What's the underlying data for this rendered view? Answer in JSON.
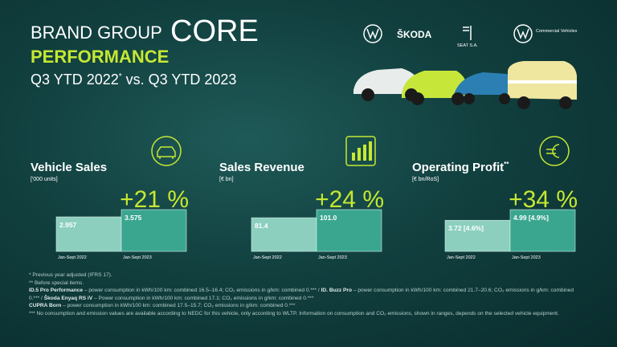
{
  "header": {
    "title_a": "BRAND GROUP",
    "title_b": "CORE",
    "subtitle": "PERFORMANCE",
    "period_a": "Q3 YTD 2022",
    "period_mark": "*",
    "period_b": " vs. Q3 YTD 2023"
  },
  "brands": [
    "ŠKODA",
    "SEAT S.A.",
    "Commercial Vehicles"
  ],
  "chart_data": [
    {
      "type": "bar",
      "title": "Vehicle Sales",
      "unit": "['000 units]",
      "change": "+21 %",
      "categories": [
        "Jan-Sept 2022",
        "Jan-Sept 2023"
      ],
      "values": [
        2.957,
        3.575
      ],
      "value_labels": [
        "2.957",
        "3.575"
      ],
      "colors": [
        "#8ccfbf",
        "#3aa68f"
      ]
    },
    {
      "type": "bar",
      "title": "Sales Revenue",
      "unit": "[€ bn]",
      "change": "+24 %",
      "categories": [
        "Jan-Sept 2022",
        "Jan-Sept 2023"
      ],
      "values": [
        81.4,
        101.0
      ],
      "value_labels": [
        "81.4",
        "101.0"
      ],
      "colors": [
        "#8ccfbf",
        "#3aa68f"
      ]
    },
    {
      "type": "bar",
      "title": "Operating Profit",
      "title_mark": "**",
      "unit": "[€ bn/RoS]",
      "change": "+34 %",
      "categories": [
        "Jan-Sept 2022",
        "Jan-Sept 2023"
      ],
      "values": [
        3.72,
        4.99
      ],
      "value_labels": [
        "3.72 [4.6%]",
        "4.99 [4.9%]"
      ],
      "colors": [
        "#8ccfbf",
        "#3aa68f"
      ]
    }
  ],
  "footnotes": [
    [
      {
        "text": "* Previous year adjusted (IFRS 17)."
      }
    ],
    [
      {
        "text": "** Before special items."
      }
    ],
    [
      {
        "bold": "ID.5 Pro Performance"
      },
      {
        "text": " – power consumption in kWh/100 km: combined 16.5–16.4; CO₂ emissions in g/km: combined 0.*** / "
      },
      {
        "bold": "ID. Buzz Pro"
      },
      {
        "text": " – power consumption in kWh/100 km: combined 21.7–20.6; CO₂ emissions in g/km: combined 0.*** / "
      },
      {
        "bold": "Škoda Enyaq RS iV"
      },
      {
        "text": " – Power consumption in kWh/100 km: combined 17.1; CO₂ emissions in g/km: combined 0.***"
      }
    ],
    [
      {
        "bold": "CUPRA Born"
      },
      {
        "text": " – power consumption in kWh/100 km: combined 17.5–15.7; CO₂ emissions in g/km: combined 0.***"
      }
    ],
    [
      {
        "text": "*** No consumption and emission values are available according to NEDC for this vehicle, only according to WLTP. Information on consumption and CO₂ emissions, shown in ranges, depends on the selected vehicle equipment."
      }
    ]
  ]
}
